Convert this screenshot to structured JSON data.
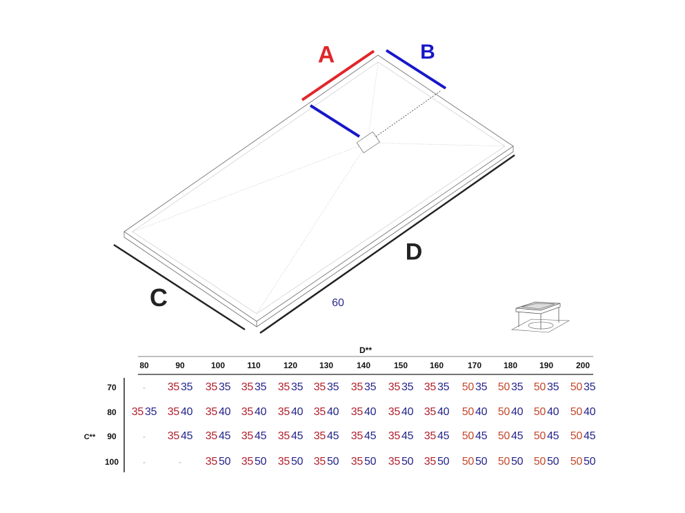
{
  "diagram": {
    "labels": {
      "a": "A",
      "b": "B",
      "c": "C",
      "d": "D",
      "dimension_note": "60"
    },
    "colors": {
      "a": "#e0262b",
      "b": "#1717c8",
      "dimension_note": "#2a2a8a",
      "outline": "#555555"
    },
    "drain_icon": "drain-grate-icon"
  },
  "table": {
    "column_group_label": "D**",
    "row_group_label": "C**",
    "columns": [
      "80",
      "90",
      "100",
      "110",
      "120",
      "130",
      "140",
      "150",
      "160",
      "170",
      "180",
      "190",
      "200"
    ],
    "rows": [
      {
        "label": "70",
        "cells": [
          null,
          [
            "35",
            "35"
          ],
          [
            "35",
            "35"
          ],
          [
            "35",
            "35"
          ],
          [
            "35",
            "35"
          ],
          [
            "35",
            "35"
          ],
          [
            "35",
            "35"
          ],
          [
            "35",
            "35"
          ],
          [
            "35",
            "35"
          ],
          [
            "50",
            "35"
          ],
          [
            "50",
            "35"
          ],
          [
            "50",
            "35"
          ],
          [
            "50",
            "35"
          ]
        ]
      },
      {
        "label": "80",
        "cells": [
          [
            "35",
            "35"
          ],
          [
            "35",
            "40"
          ],
          [
            "35",
            "40"
          ],
          [
            "35",
            "40"
          ],
          [
            "35",
            "40"
          ],
          [
            "35",
            "40"
          ],
          [
            "35",
            "40"
          ],
          [
            "35",
            "40"
          ],
          [
            "35",
            "40"
          ],
          [
            "50",
            "40"
          ],
          [
            "50",
            "40"
          ],
          [
            "50",
            "40"
          ],
          [
            "50",
            "40"
          ]
        ]
      },
      {
        "label": "90",
        "cells": [
          null,
          [
            "35",
            "45"
          ],
          [
            "35",
            "45"
          ],
          [
            "35",
            "45"
          ],
          [
            "35",
            "45"
          ],
          [
            "35",
            "45"
          ],
          [
            "35",
            "45"
          ],
          [
            "35",
            "45"
          ],
          [
            "35",
            "45"
          ],
          [
            "50",
            "45"
          ],
          [
            "50",
            "45"
          ],
          [
            "50",
            "45"
          ],
          [
            "50",
            "45"
          ]
        ]
      },
      {
        "label": "100",
        "cells": [
          null,
          null,
          [
            "35",
            "50"
          ],
          [
            "35",
            "50"
          ],
          [
            "35",
            "50"
          ],
          [
            "35",
            "50"
          ],
          [
            "35",
            "50"
          ],
          [
            "35",
            "50"
          ],
          [
            "35",
            "50"
          ],
          [
            "50",
            "50"
          ],
          [
            "50",
            "50"
          ],
          [
            "50",
            "50"
          ],
          [
            "50",
            "50"
          ]
        ]
      }
    ],
    "empty_marker": "-",
    "colors": {
      "a_35": "#b0202c",
      "a_50": "#c4472a",
      "b": "#23238a"
    }
  }
}
